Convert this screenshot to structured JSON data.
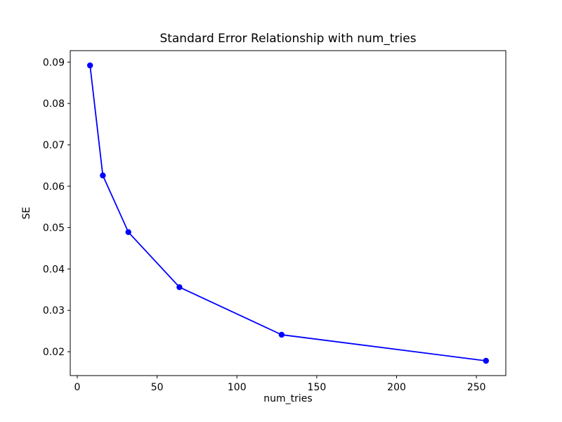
{
  "figure": {
    "background": "#ffffff",
    "spine_color": "#000000",
    "text_color": "#000000"
  },
  "chart_data": {
    "type": "line",
    "title": "Standard Error Relationship with num_tries",
    "xlabel": "num_tries",
    "ylabel": "SE",
    "grid": false,
    "legend": "none",
    "xlim": [
      -4.4,
      268.4
    ],
    "ylim": [
      0.01423,
      0.09277
    ],
    "x_ticks": [
      {
        "value": 0,
        "label": "0"
      },
      {
        "value": 50,
        "label": "50"
      },
      {
        "value": 100,
        "label": "100"
      },
      {
        "value": 150,
        "label": "150"
      },
      {
        "value": 200,
        "label": "200"
      },
      {
        "value": 250,
        "label": "250"
      }
    ],
    "y_ticks": [
      {
        "value": 0.02,
        "label": "0.02"
      },
      {
        "value": 0.03,
        "label": "0.03"
      },
      {
        "value": 0.04,
        "label": "0.04"
      },
      {
        "value": 0.05,
        "label": "0.05"
      },
      {
        "value": 0.06,
        "label": "0.06"
      },
      {
        "value": 0.07,
        "label": "0.07"
      },
      {
        "value": 0.08,
        "label": "0.08"
      },
      {
        "value": 0.09,
        "label": "0.09"
      }
    ],
    "series": [
      {
        "name": "SE",
        "color": "#0000ff",
        "marker": "circle",
        "marker_size": 4.2,
        "line_width": 1.8,
        "x": [
          8,
          16,
          32,
          64,
          128,
          256
        ],
        "y": [
          0.0892,
          0.0626,
          0.0489,
          0.0356,
          0.0241,
          0.0178
        ]
      }
    ]
  }
}
